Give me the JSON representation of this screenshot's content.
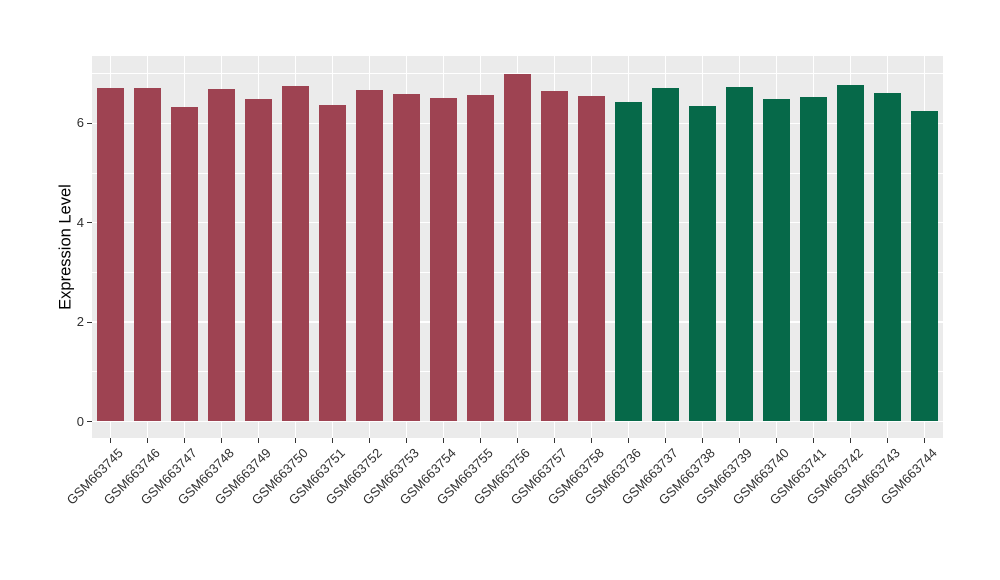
{
  "style": {
    "panel_bg": "#EBEBEB",
    "grid_color": "#FFFFFF",
    "axis_text_color": "#303030",
    "background": "#FFFFFF"
  },
  "chart_data": {
    "type": "bar",
    "title": "",
    "xlabel": "",
    "ylabel": "Expression Level",
    "legend": "none",
    "grid": "white major and minor gridlines on gray panel (ggplot style)",
    "ylim": [
      -0.33,
      7.36
    ],
    "ytick_labels": [
      "0",
      "2",
      "4",
      "6"
    ],
    "ytick_values": [
      0,
      2,
      4,
      6
    ],
    "ytick_minor_values": [
      1,
      3,
      5,
      7
    ],
    "group_colors": {
      "maroon": "#9E4352",
      "green": "#066949"
    },
    "categories": [
      "GSM663745",
      "GSM663746",
      "GSM663747",
      "GSM663748",
      "GSM663749",
      "GSM663750",
      "GSM663751",
      "GSM663752",
      "GSM663753",
      "GSM663754",
      "GSM663755",
      "GSM663756",
      "GSM663757",
      "GSM663758",
      "GSM663736",
      "GSM663737",
      "GSM663738",
      "GSM663739",
      "GSM663740",
      "GSM663741",
      "GSM663742",
      "GSM663743",
      "GSM663744"
    ],
    "values": [
      6.71,
      6.71,
      6.33,
      6.69,
      6.49,
      6.76,
      6.37,
      6.68,
      6.59,
      6.5,
      6.57,
      7.0,
      6.64,
      6.55,
      6.42,
      6.71,
      6.35,
      6.73,
      6.49,
      6.52,
      6.77,
      6.61,
      6.24
    ],
    "bar_groups": [
      "maroon",
      "maroon",
      "maroon",
      "maroon",
      "maroon",
      "maroon",
      "maroon",
      "maroon",
      "maroon",
      "maroon",
      "maroon",
      "maroon",
      "maroon",
      "maroon",
      "green",
      "green",
      "green",
      "green",
      "green",
      "green",
      "green",
      "green",
      "green"
    ]
  }
}
